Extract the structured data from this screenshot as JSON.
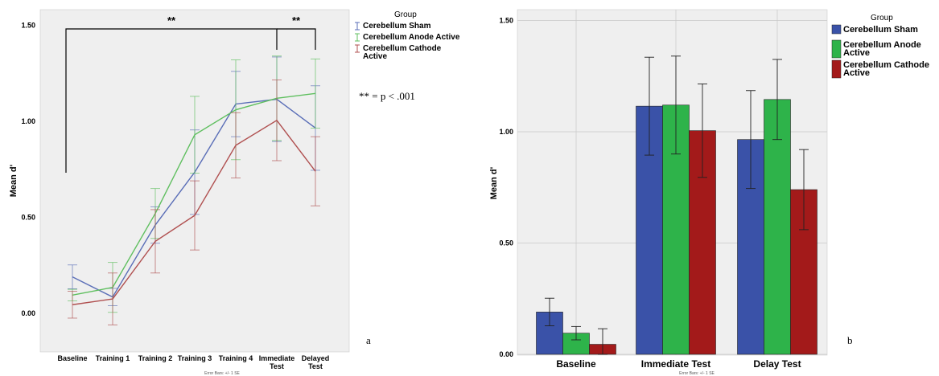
{
  "chart_data": [
    {
      "type": "line",
      "panel_label": "a",
      "ylabel": "Mean d'",
      "xlabel": "",
      "footnote": "Error Bars: +/- 1 SE",
      "categories": [
        "Baseline",
        "Training 1",
        "Training 2",
        "Training 3",
        "Training 4",
        "Immediate Test",
        "Delayed Test"
      ],
      "ylim": [
        -0.2,
        1.65
      ],
      "yticks": [
        "0.00",
        "0.50",
        "1.00",
        "1.50"
      ],
      "grid": false,
      "legend": {
        "title": "Group",
        "position": "top-right",
        "entries": [
          "Cerebellum Sham",
          "Cerebellum Anode Active",
          "Cerebellum Cathode Active"
        ]
      },
      "series": [
        {
          "name": "Cerebellum Sham",
          "color": "#5a6eb7",
          "values": [
            0.19,
            0.085,
            0.46,
            0.735,
            1.09,
            1.115,
            0.965
          ],
          "se": [
            0.062,
            0.045,
            0.095,
            0.22,
            0.17,
            0.22,
            0.22
          ]
        },
        {
          "name": "Cerebellum Anode Active",
          "color": "#5fbf5f",
          "values": [
            0.095,
            0.135,
            0.52,
            0.93,
            1.06,
            1.12,
            1.145
          ],
          "se": [
            0.03,
            0.13,
            0.13,
            0.2,
            0.26,
            0.22,
            0.18
          ]
        },
        {
          "name": "Cerebellum Cathode Active",
          "color": "#b05050",
          "values": [
            0.045,
            0.075,
            0.375,
            0.51,
            0.875,
            1.005,
            0.74
          ],
          "se": [
            0.07,
            0.135,
            0.165,
            0.18,
            0.17,
            0.21,
            0.18
          ]
        }
      ],
      "annotations": {
        "significance_left": "**",
        "significance_right": "**",
        "significance_note": "** = p < .001"
      }
    },
    {
      "type": "bar",
      "panel_label": "b",
      "ylabel": "Mean d'",
      "xlabel": "",
      "footnote": "Error Bars: +/- 1 SE",
      "categories": [
        "Baseline",
        "Immediate Test",
        "Delay Test"
      ],
      "ylim": [
        0,
        1.6
      ],
      "yticks": [
        "0.00",
        "0.50",
        "1.00",
        "1.50"
      ],
      "grid": true,
      "legend": {
        "title": "Group",
        "position": "top-right",
        "entries": [
          "Cerebellum Sham",
          "Cerebellum Anode Active",
          "Cerebellum Cathode Active"
        ]
      },
      "series": [
        {
          "name": "Cerebellum Sham",
          "color": "#3a52a8",
          "values": [
            0.19,
            1.115,
            0.965
          ],
          "se": [
            0.062,
            0.22,
            0.22
          ]
        },
        {
          "name": "Cerebellum Anode Active",
          "color": "#2eb34a",
          "values": [
            0.095,
            1.12,
            1.145
          ],
          "se": [
            0.03,
            0.22,
            0.18
          ]
        },
        {
          "name": "Cerebellum Cathode Active",
          "color": "#a31a1a",
          "values": [
            0.045,
            1.005,
            0.74
          ],
          "se": [
            0.07,
            0.21,
            0.18
          ]
        }
      ]
    }
  ]
}
